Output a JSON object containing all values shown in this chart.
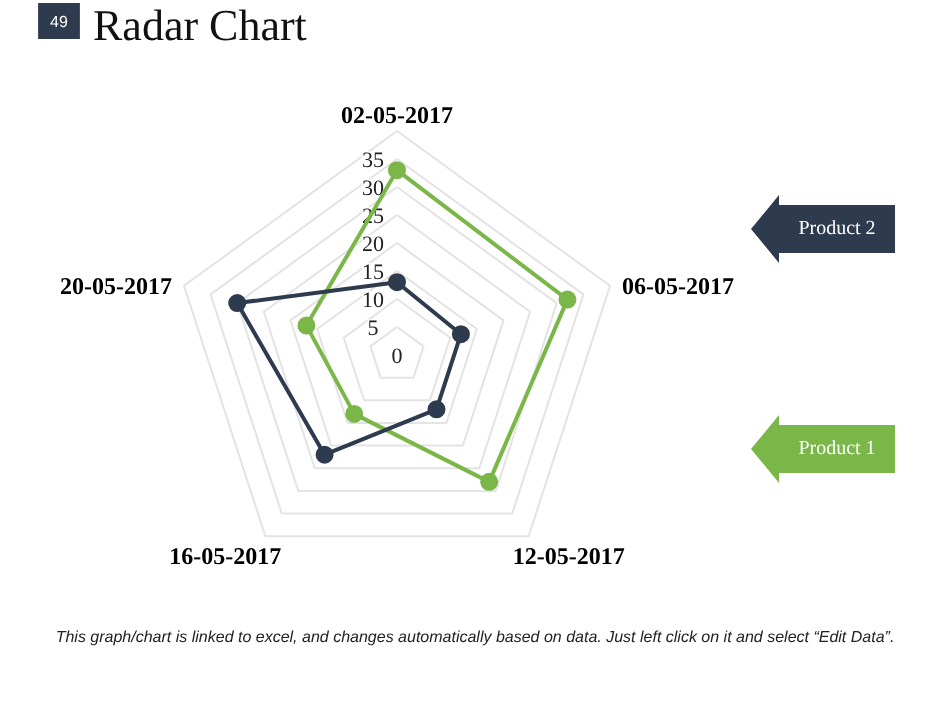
{
  "chart_data": {
    "type": "radar",
    "title": "Radar Chart",
    "categories": [
      "02-05-2017",
      "06-05-2017",
      "12-05-2017",
      "16-05-2017",
      "20-05-2017"
    ],
    "series": [
      {
        "name": "Product 1",
        "color": "#7ab648",
        "values": [
          33,
          32,
          28,
          13,
          17
        ]
      },
      {
        "name": "Product 2",
        "color": "#2e3b4e",
        "values": [
          13,
          12,
          12,
          22,
          30
        ]
      }
    ],
    "ylim": [
      0,
      40
    ],
    "yticks": [
      0,
      5,
      10,
      15,
      20,
      25,
      30,
      35
    ],
    "grid": true,
    "marker": "circle",
    "legend": "right",
    "annotations": [
      "49",
      "This graph/chart is linked to excel, and changes automatically based on data. Just left click on it and select “Edit Data”."
    ]
  }
}
